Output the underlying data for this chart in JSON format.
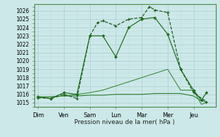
{
  "background_color": "#cce8e8",
  "grid_color_major": "#aacccc",
  "grid_color_minor": "#bbdddd",
  "xlabel": "Pression niveau de la mer( hPa )",
  "ylim": [
    1014.5,
    1026.8
  ],
  "yticks": [
    1015,
    1016,
    1017,
    1018,
    1019,
    1020,
    1021,
    1022,
    1023,
    1024,
    1025,
    1026
  ],
  "day_labels": [
    "Dim",
    "Ven",
    "Sam",
    "Lun",
    "Mar",
    "Mer",
    "Jeu"
  ],
  "day_positions": [
    0,
    1,
    2,
    3,
    4,
    5,
    6
  ],
  "xlim": [
    -0.15,
    6.85
  ],
  "line_dark": "#1a5c1a",
  "line_mid": "#1e6e1e",
  "line_light1": "#2a7a2a",
  "line_light2": "#3a8a3a",
  "series1_x": [
    0,
    0.5,
    1.0,
    1.5,
    2.0,
    2.3,
    2.5,
    3.0,
    3.5,
    4.0,
    4.3,
    4.5,
    5.0,
    5.5,
    6.0,
    6.5
  ],
  "series1_y": [
    1015.6,
    1015.5,
    1016.0,
    1015.5,
    1023.0,
    1024.6,
    1024.8,
    1024.2,
    1025.0,
    1025.2,
    1026.5,
    1026.1,
    1025.8,
    1019.0,
    1016.2,
    1015.1
  ],
  "series2_x": [
    0,
    0.5,
    1.0,
    1.5,
    2.0,
    2.5,
    3.0,
    3.5,
    4.0,
    4.5,
    5.0,
    5.5,
    6.0,
    6.3,
    6.5
  ],
  "series2_y": [
    1015.7,
    1015.5,
    1016.2,
    1016.0,
    1023.0,
    1023.0,
    1020.5,
    1024.0,
    1025.0,
    1025.2,
    1023.2,
    1019.0,
    1016.5,
    1015.3,
    1016.2
  ],
  "series3_x": [
    0,
    0.5,
    1.0,
    1.5,
    2.0,
    2.5,
    3.0,
    3.5,
    4.0,
    4.5,
    5.0,
    5.5,
    6.0,
    6.3,
    6.5
  ],
  "series3_y": [
    1015.7,
    1015.7,
    1015.8,
    1015.8,
    1015.9,
    1015.9,
    1016.0,
    1016.0,
    1016.0,
    1016.1,
    1016.1,
    1016.1,
    1015.8,
    1015.2,
    1015.1
  ],
  "series4_x": [
    0,
    0.5,
    1.0,
    1.5,
    2.0,
    2.5,
    3.0,
    3.5,
    4.0,
    4.5,
    5.0,
    5.5,
    6.0,
    6.3,
    6.5
  ],
  "series4_y": [
    1015.6,
    1015.7,
    1015.8,
    1016.0,
    1016.2,
    1016.5,
    1017.0,
    1017.5,
    1018.0,
    1018.5,
    1019.0,
    1016.5,
    1016.5,
    1014.8,
    1015.0
  ]
}
